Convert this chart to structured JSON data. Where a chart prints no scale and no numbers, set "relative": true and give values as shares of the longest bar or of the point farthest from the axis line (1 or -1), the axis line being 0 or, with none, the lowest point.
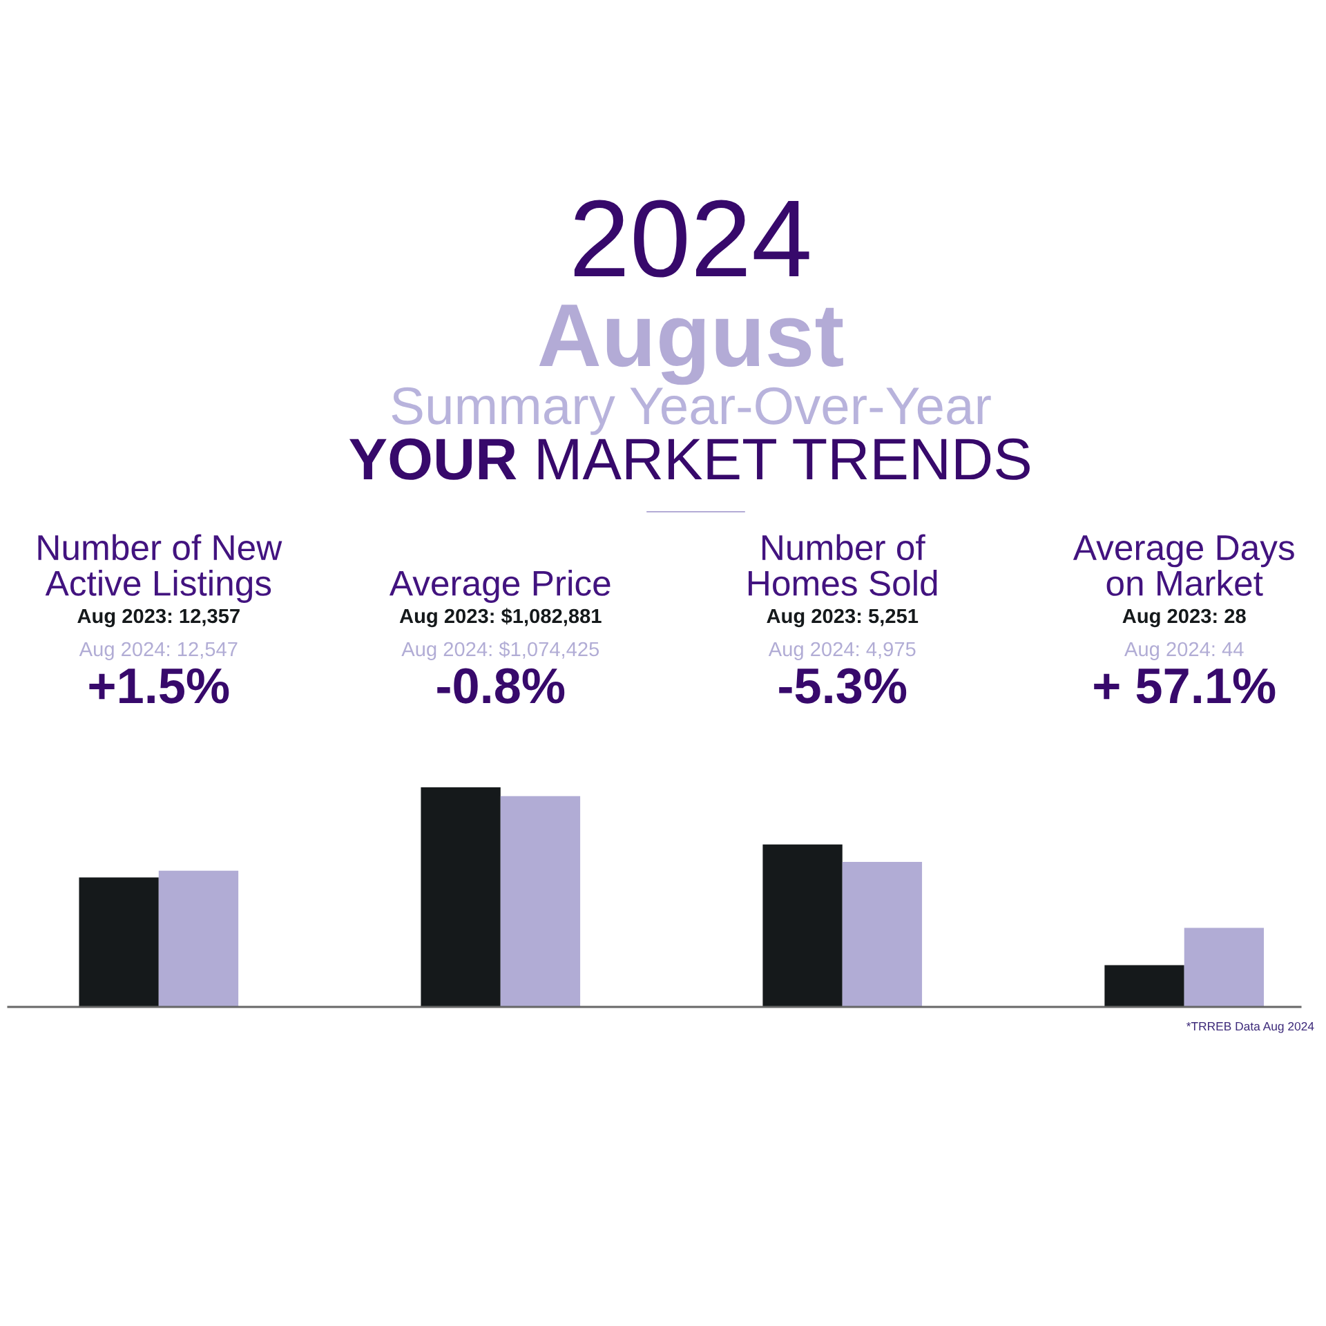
{
  "chart_data": [
    {
      "type": "other",
      "title": "2024",
      "subtitle": "August",
      "annotations": [
        "Summary Year-Over-Year",
        "YOUR MARKET TRENDS"
      ]
    },
    {
      "type": "bar",
      "relative": true,
      "categories": [
        "Number of New\nActive Listings",
        "Average Price",
        "Number of\nHomes Sold",
        "Average Days\non Market"
      ],
      "series": [
        {
          "color": "#15191b",
          "values": [
            0.59,
            1,
            0.74,
            0.19
          ]
        },
        {
          "color": "#b1acd5",
          "values": [
            0.62,
            0.96,
            0.66,
            0.36
          ]
        }
      ],
      "annotations": [
        "Aug 2023: 12,357",
        "Aug 2024: 12,547",
        "+1.5%",
        "Aug 2023: $1,082,881",
        "Aug 2024: $1,074,425",
        "-0.8%",
        "Aug 2023: 5,251",
        "Aug 2024: 4,975",
        "-5.3%",
        "Aug 2023: 28",
        "Aug 2024: 44",
        "+ 57.1%",
        "*TRREB Data Aug 2024"
      ]
    }
  ]
}
